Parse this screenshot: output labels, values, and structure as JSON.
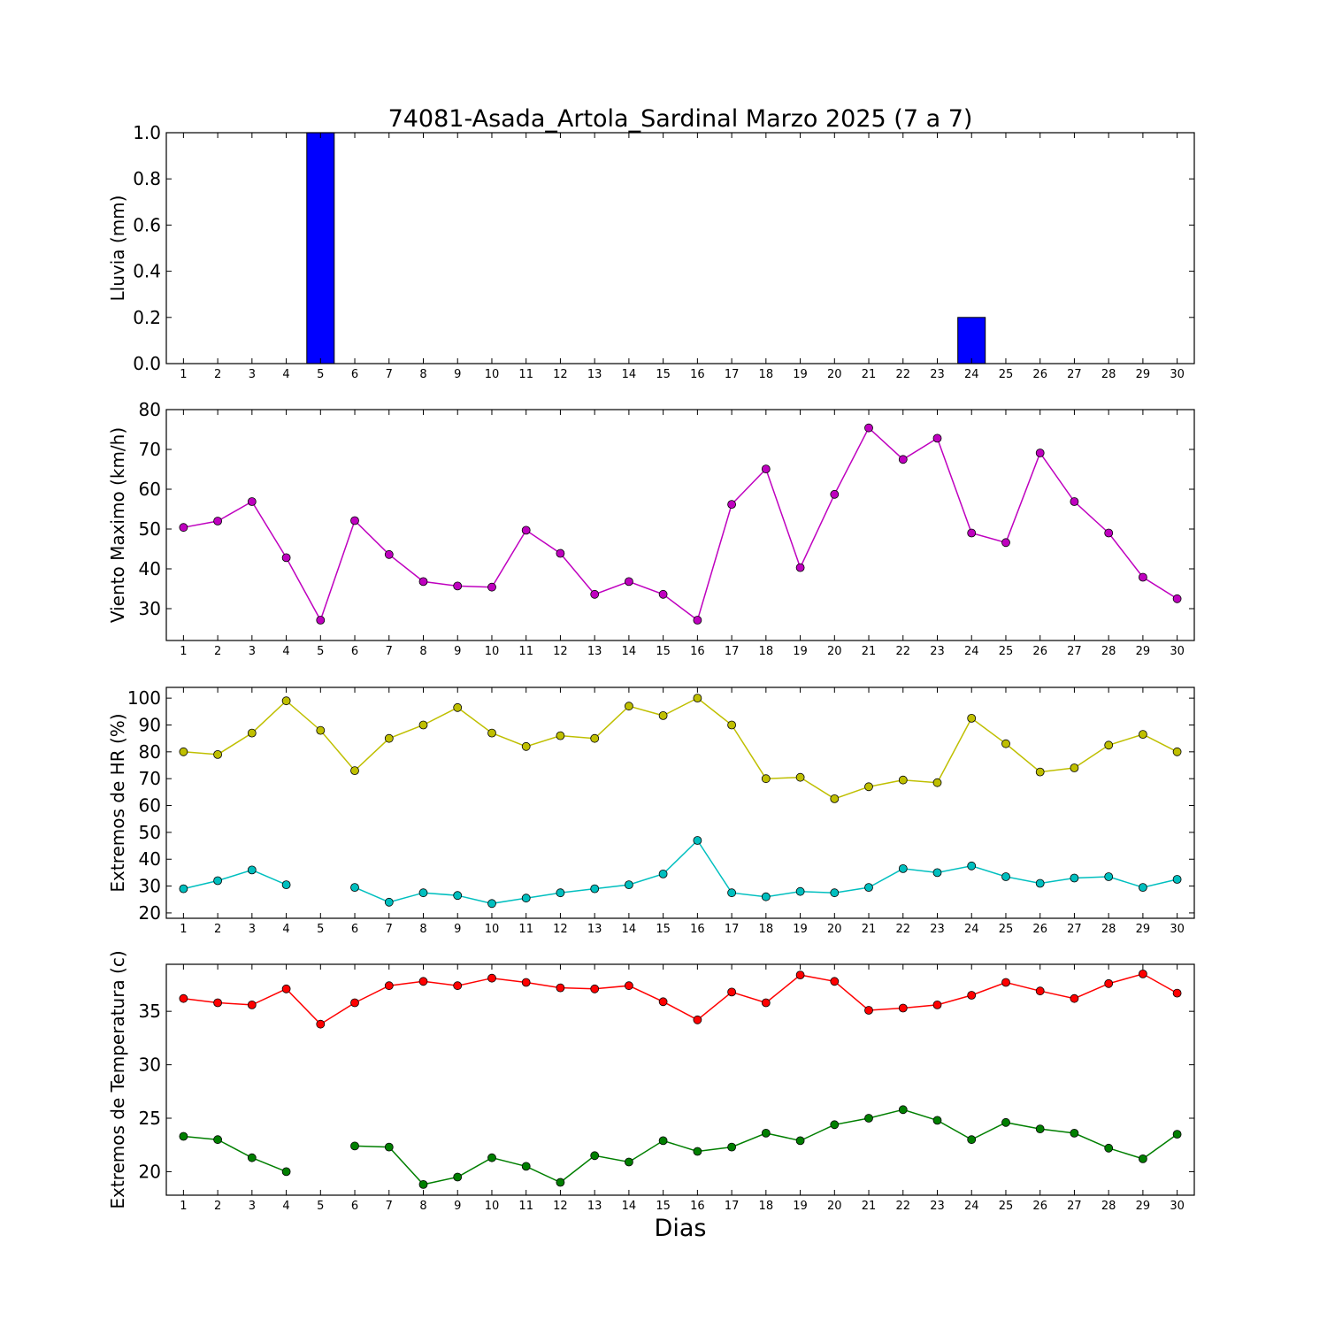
{
  "figure": {
    "title": "74081-Asada_Artola_Sardinal Marzo 2025  (7 a 7)",
    "xlabel": "Dias"
  },
  "chart_data": [
    {
      "id": "lluvia",
      "type": "bar",
      "ylabel": "Lluvia (mm)",
      "ylim": [
        0,
        1.0
      ],
      "yticks": [
        0.0,
        0.2,
        0.4,
        0.6,
        0.8,
        1.0
      ],
      "ytick_decimals": 1,
      "xlim": [
        0.5,
        30.5
      ],
      "x": [
        1,
        2,
        3,
        4,
        5,
        6,
        7,
        8,
        9,
        10,
        11,
        12,
        13,
        14,
        15,
        16,
        17,
        18,
        19,
        20,
        21,
        22,
        23,
        24,
        25,
        26,
        27,
        28,
        29,
        30
      ],
      "series": [
        {
          "color": "#0000ff",
          "values": [
            0,
            0,
            0,
            0,
            1.0,
            0,
            0,
            0,
            0,
            0,
            0,
            0,
            0,
            0,
            0,
            0,
            0,
            0,
            0,
            0,
            0,
            0,
            0,
            0.2,
            0,
            0,
            0,
            0,
            0,
            0
          ]
        }
      ]
    },
    {
      "id": "viento",
      "type": "line",
      "ylabel": "Viento Maximo (km/h)",
      "ylim": [
        22,
        80
      ],
      "yticks": [
        30,
        40,
        50,
        60,
        70,
        80
      ],
      "ytick_decimals": 0,
      "xlim": [
        0.5,
        30.5
      ],
      "x": [
        1,
        2,
        3,
        4,
        5,
        6,
        7,
        8,
        9,
        10,
        11,
        12,
        13,
        14,
        15,
        16,
        17,
        18,
        19,
        20,
        21,
        22,
        23,
        24,
        25,
        26,
        27,
        28,
        29,
        30
      ],
      "series": [
        {
          "color": "#bf00bf",
          "values": [
            50.4,
            52.0,
            56.9,
            42.8,
            27.1,
            52.1,
            43.6,
            36.8,
            35.7,
            35.4,
            49.7,
            43.9,
            33.6,
            36.8,
            33.6,
            27.1,
            56.2,
            65.1,
            40.3,
            58.7,
            75.4,
            67.5,
            72.8,
            49.0,
            46.6,
            69.1,
            56.9,
            49.0,
            37.9,
            32.5
          ]
        }
      ]
    },
    {
      "id": "hr",
      "type": "line",
      "ylabel": "Extremos de HR (%)",
      "ylim": [
        18,
        104
      ],
      "yticks": [
        20,
        30,
        40,
        50,
        60,
        70,
        80,
        90,
        100
      ],
      "ytick_decimals": 0,
      "xlim": [
        0.5,
        30.5
      ],
      "x": [
        1,
        2,
        3,
        4,
        5,
        6,
        7,
        8,
        9,
        10,
        11,
        12,
        13,
        14,
        15,
        16,
        17,
        18,
        19,
        20,
        21,
        22,
        23,
        24,
        25,
        26,
        27,
        28,
        29,
        30
      ],
      "series": [
        {
          "color": "#bfbf00",
          "values": [
            80,
            79,
            87,
            99,
            88,
            73,
            85,
            90,
            96.5,
            87,
            82,
            86,
            85,
            97,
            93.5,
            100,
            90,
            70,
            70.5,
            62.5,
            67,
            69.5,
            68.5,
            92.5,
            83,
            72.5,
            74,
            82.5,
            86.5,
            80
          ]
        },
        {
          "color": "#00bfbf",
          "values": [
            29,
            32,
            36,
            30.5,
            null,
            29.5,
            24,
            27.5,
            26.5,
            23.5,
            25.5,
            27.5,
            29,
            30.5,
            34.5,
            47,
            27.5,
            26,
            28,
            27.5,
            29.5,
            36.5,
            35,
            37.5,
            33.5,
            31,
            33,
            33.5,
            29.5,
            32.5
          ]
        }
      ]
    },
    {
      "id": "temperatura",
      "type": "line",
      "ylabel": "Extremos de Temperatura (c)",
      "ylim": [
        17.8,
        39.4
      ],
      "yticks": [
        20,
        25,
        30,
        35
      ],
      "ytick_decimals": 0,
      "xlim": [
        0.5,
        30.5
      ],
      "x": [
        1,
        2,
        3,
        4,
        5,
        6,
        7,
        8,
        9,
        10,
        11,
        12,
        13,
        14,
        15,
        16,
        17,
        18,
        19,
        20,
        21,
        22,
        23,
        24,
        25,
        26,
        27,
        28,
        29,
        30
      ],
      "series": [
        {
          "color": "#ff0000",
          "values": [
            36.2,
            35.8,
            35.6,
            37.1,
            33.8,
            35.8,
            37.4,
            37.8,
            37.4,
            38.1,
            37.7,
            37.2,
            37.1,
            37.4,
            35.9,
            34.2,
            36.8,
            35.8,
            38.4,
            37.8,
            35.1,
            35.3,
            35.6,
            36.5,
            37.7,
            36.9,
            36.2,
            37.6,
            38.5,
            36.7
          ]
        },
        {
          "color": "#007f00",
          "values": [
            23.3,
            23.0,
            21.3,
            20.0,
            null,
            22.4,
            22.3,
            18.8,
            19.5,
            21.3,
            20.5,
            19.0,
            21.5,
            20.9,
            22.9,
            21.9,
            22.3,
            23.6,
            22.9,
            24.4,
            25.0,
            25.8,
            24.8,
            23.0,
            24.6,
            24.0,
            23.6,
            22.2,
            21.2,
            23.5
          ]
        }
      ]
    }
  ]
}
